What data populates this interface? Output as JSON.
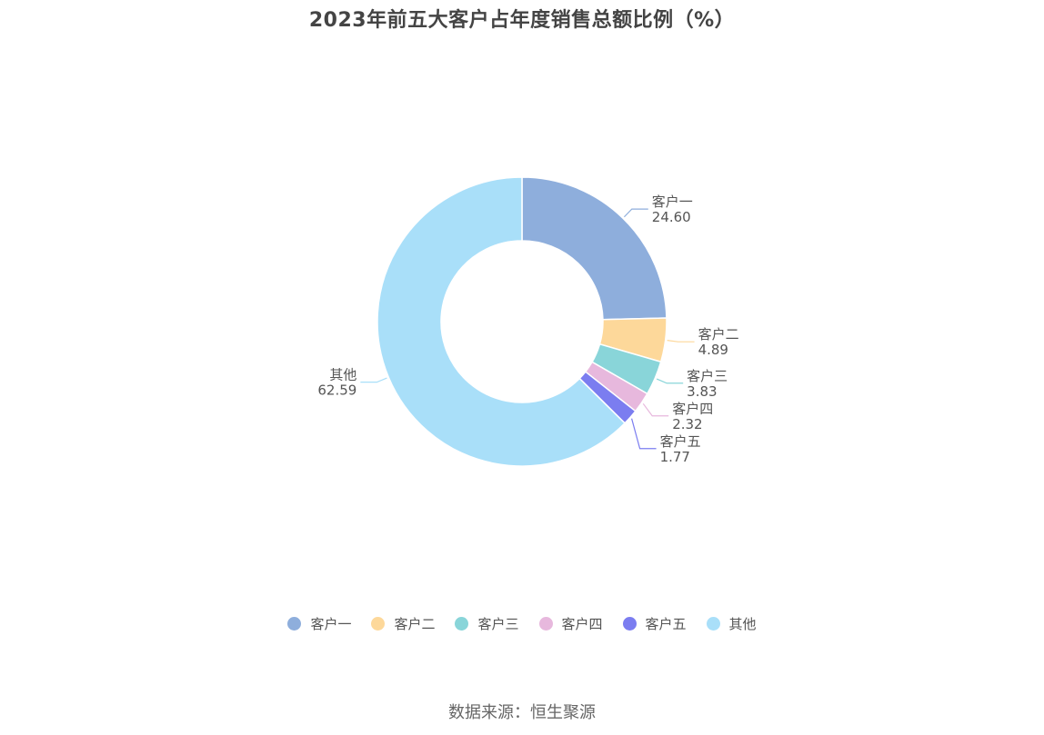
{
  "chart_data": {
    "type": "pie",
    "variant": "donut",
    "title": "2023年前五大客户占年度销售总额比例（%）",
    "categories": [
      "客户一",
      "客户二",
      "客户三",
      "客户四",
      "客户五",
      "其他"
    ],
    "values": [
      24.6,
      4.89,
      3.83,
      2.32,
      1.77,
      62.59
    ],
    "value_labels": [
      "24.60",
      "4.89",
      "3.83",
      "2.32",
      "1.77",
      "62.59"
    ],
    "colors": [
      "#8eaedc",
      "#fdd89a",
      "#89d5d9",
      "#e7b8dd",
      "#7b7df0",
      "#a9dff9"
    ],
    "legend_position": "bottom"
  },
  "source": "数据来源：恒生聚源"
}
